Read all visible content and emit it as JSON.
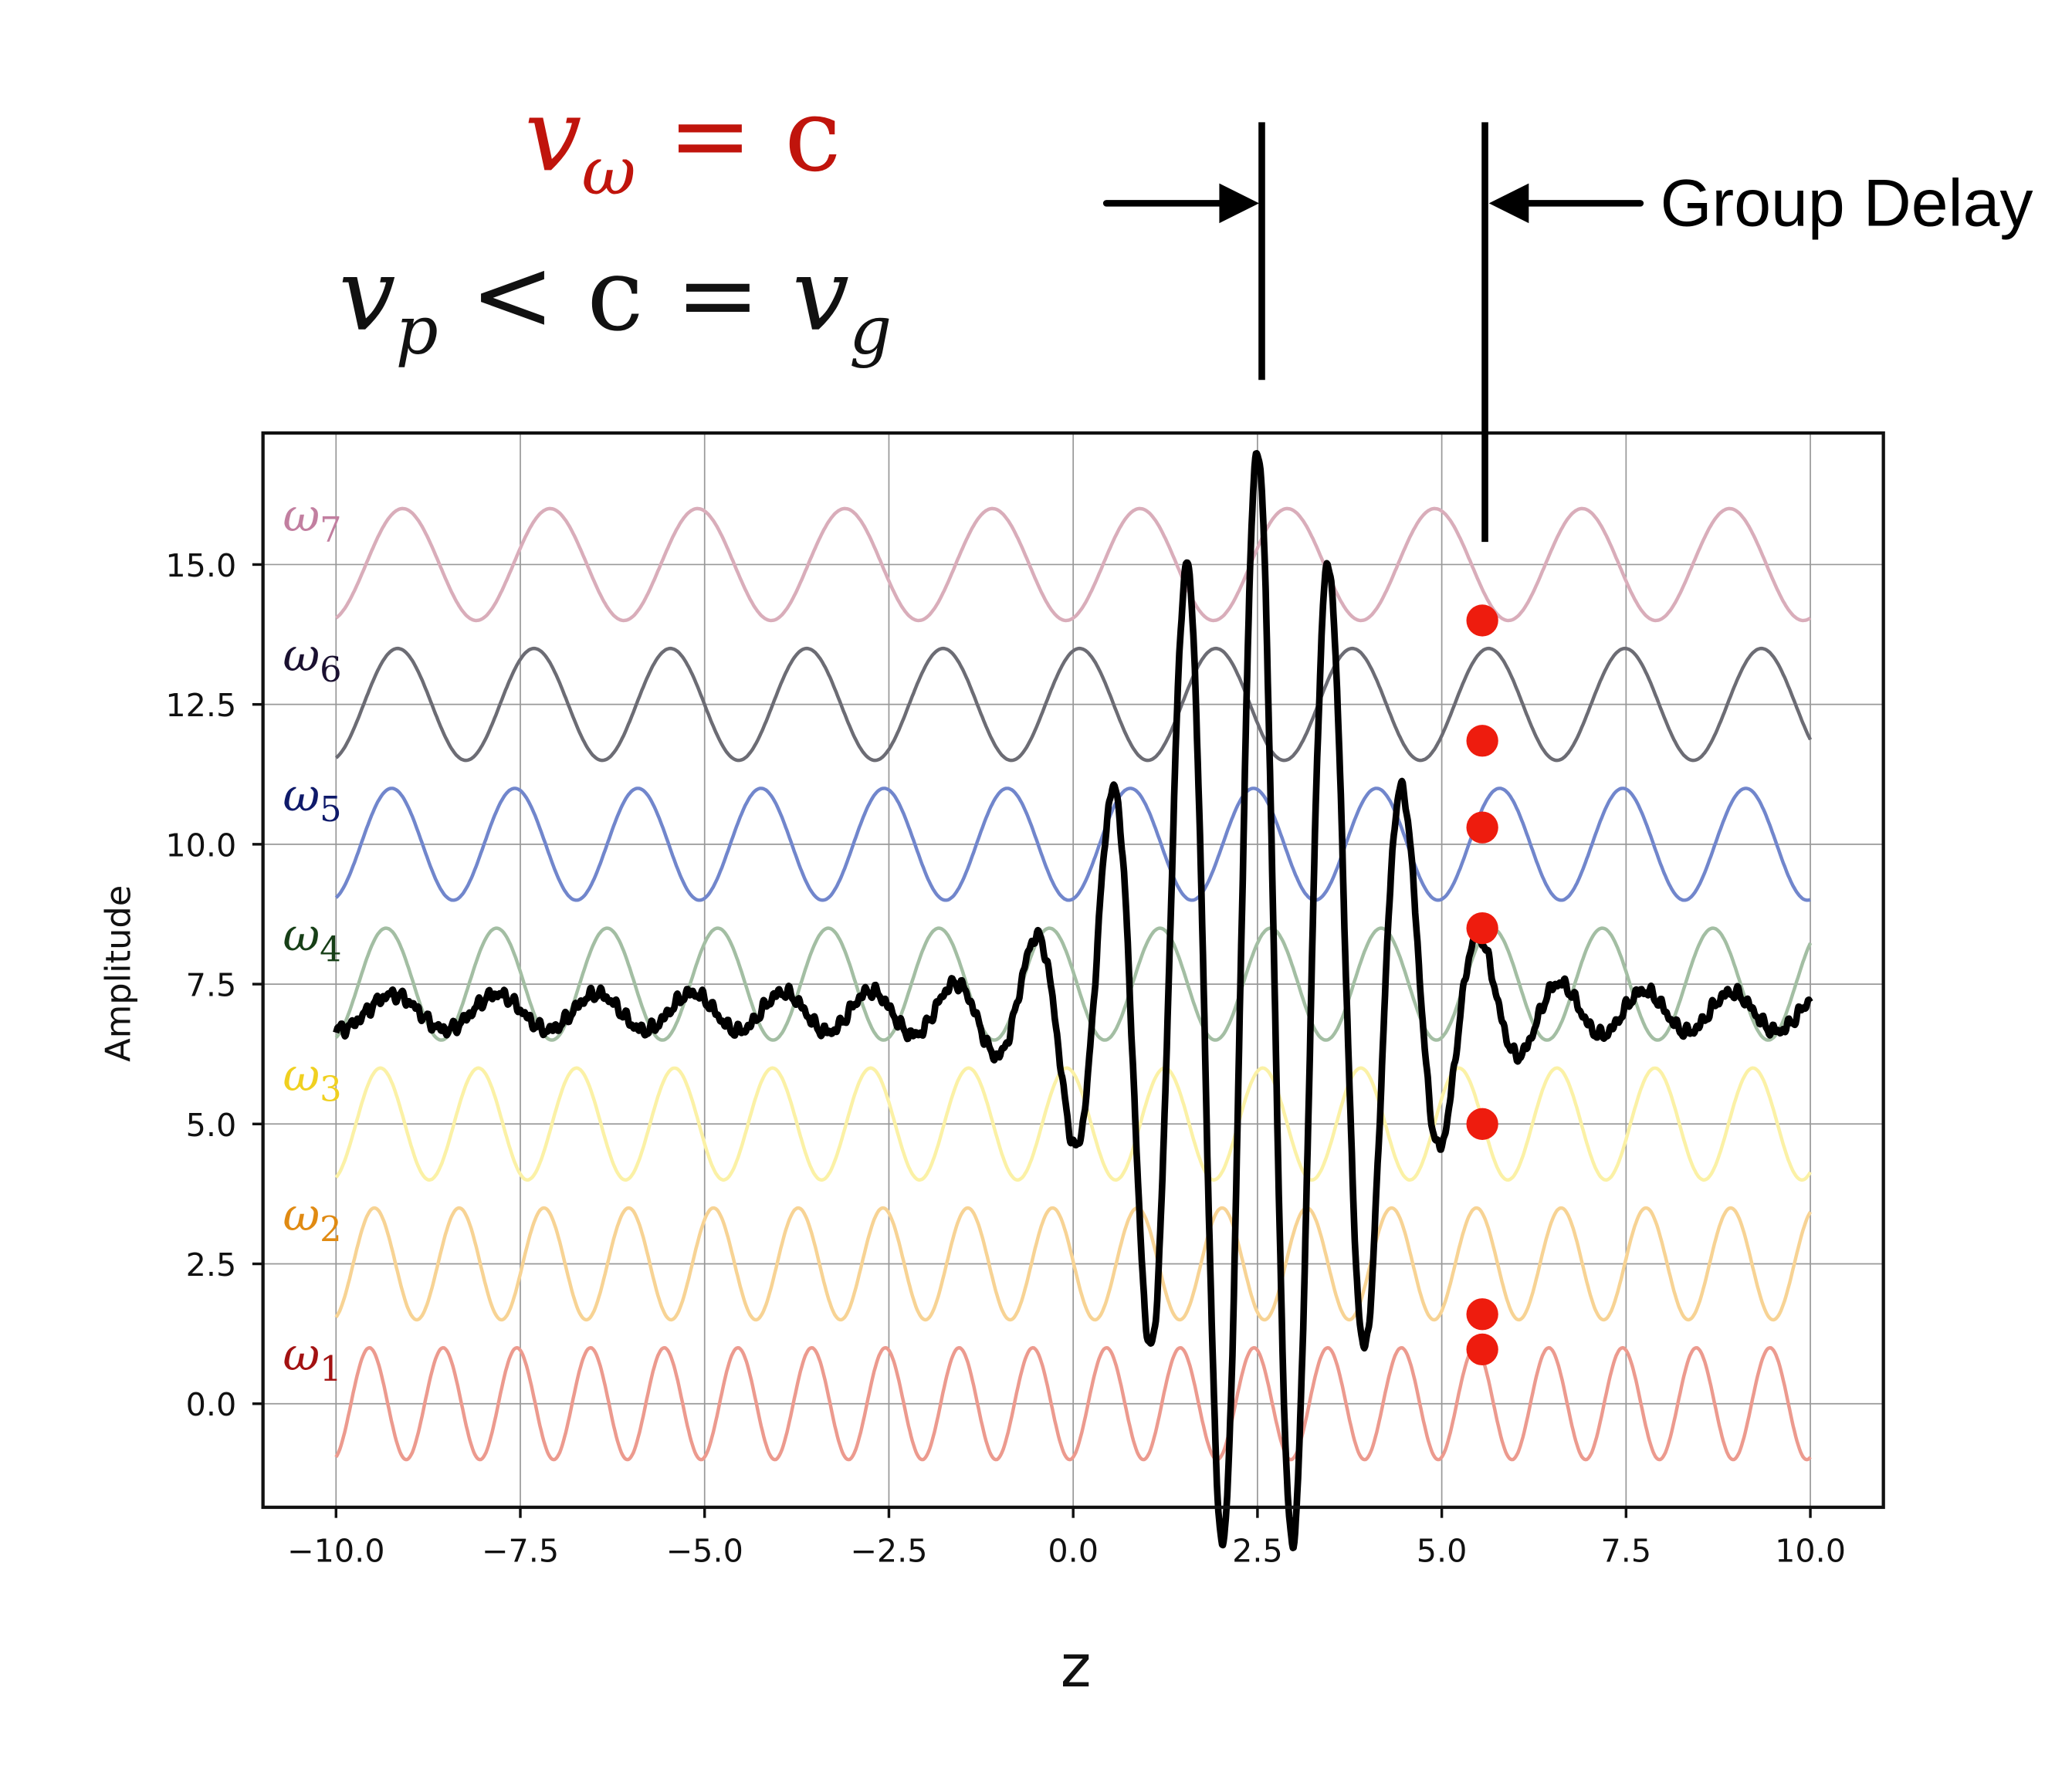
{
  "chart_data": {
    "type": "line",
    "title": "",
    "xlabel": "z",
    "ylabel": "Amplitude",
    "xlim": [
      -11,
      11
    ],
    "ylim": [
      -1.85,
      17.35
    ],
    "grid": true,
    "xticks": [
      "−10.0",
      "−7.5",
      "−5.0",
      "−2.5",
      "0.0",
      "2.5",
      "5.0",
      "7.5",
      "10.0"
    ],
    "xtick_values": [
      -10,
      -7.5,
      -5,
      -2.5,
      0,
      2.5,
      5,
      7.5,
      10
    ],
    "yticks": [
      "0.0",
      "2.5",
      "5.0",
      "7.5",
      "10.0",
      "12.5",
      "15.0"
    ],
    "ytick_values": [
      0,
      2.5,
      5,
      7.5,
      10,
      12.5,
      15
    ],
    "series": [
      {
        "name": "ω1",
        "symbol": "ω",
        "sub": "1",
        "offset": 0,
        "amplitude": 1,
        "period": 1.0,
        "color": "#ec9a8e",
        "label_color": "#a31212"
      },
      {
        "name": "ω2",
        "symbol": "ω",
        "sub": "2",
        "offset": 2.5,
        "amplitude": 1,
        "period": 1.15,
        "color": "#f7d394",
        "label_color": "#e08a12"
      },
      {
        "name": "ω3",
        "symbol": "ω",
        "sub": "3",
        "offset": 5,
        "amplitude": 1,
        "period": 1.33,
        "color": "#fbf1a6",
        "label_color": "#f0d020"
      },
      {
        "name": "ω4",
        "symbol": "ω",
        "sub": "4",
        "offset": 7.5,
        "amplitude": 1,
        "period": 1.5,
        "color": "#a3bea3",
        "label_color": "#173f17"
      },
      {
        "name": "ω5",
        "symbol": "ω",
        "sub": "5",
        "offset": 10,
        "amplitude": 1,
        "period": 1.67,
        "color": "#7186cc",
        "label_color": "#0f1a6a"
      },
      {
        "name": "ω6",
        "symbol": "ω",
        "sub": "6",
        "offset": 12.5,
        "amplitude": 1,
        "period": 1.85,
        "color": "#6c6c74",
        "label_color": "#1a1030"
      },
      {
        "name": "ω7",
        "symbol": "ω",
        "sub": "7",
        "offset": 15,
        "amplitude": 1,
        "period": 2.0,
        "color": "#d9adba",
        "label_color": "#c27fa0"
      }
    ],
    "wave_packet": {
      "name": "sum",
      "baseline": 7.0,
      "center": 2.5,
      "peak_amplitude": 9.5,
      "width": 1.4,
      "period": 0.95,
      "background_amplitude": 0.3,
      "color": "#000000"
    },
    "markers": {
      "color": "#ee1c0e",
      "z": 5.55,
      "y": [
        14.0,
        11.85,
        10.3,
        8.5,
        5.0,
        1.6,
        0.97
      ]
    },
    "group_delay": {
      "label": "Group Delay",
      "from_z": 2.5,
      "to_z": 5.55
    }
  },
  "equations": {
    "eq1": {
      "v": "v",
      "sub": "ω",
      "rest": " = c",
      "color": "#c0140c"
    },
    "eq2": {
      "v": "v",
      "sub": "p",
      "mid": " < c = ",
      "v2": "v",
      "sub2": "g",
      "color": "#111111"
    }
  }
}
